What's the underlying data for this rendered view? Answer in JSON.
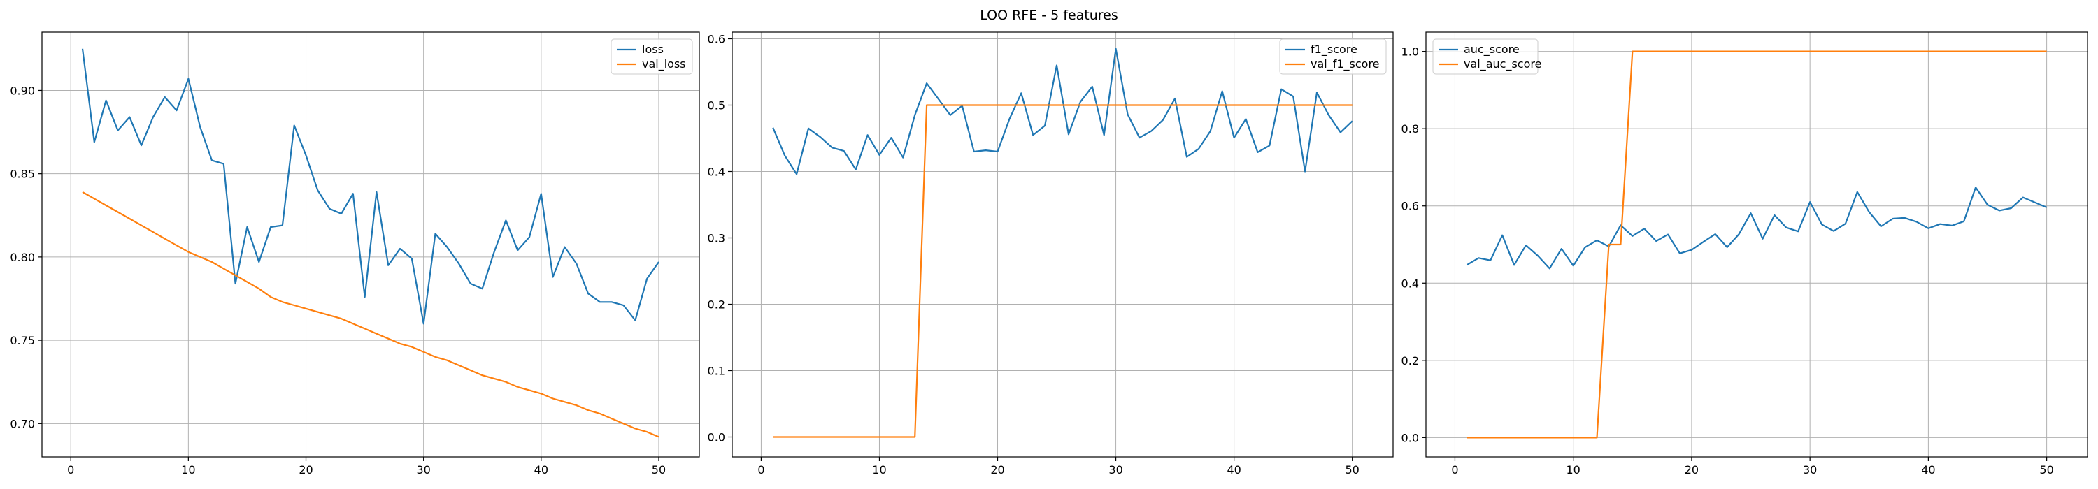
{
  "figure_title": "LOO RFE - 5 features",
  "colors": {
    "series_blue": "#1f77b4",
    "series_orange": "#ff7f0e",
    "grid": "#b0b0b0",
    "axes": "#000000",
    "legend_border": "#cccccc"
  },
  "chart_data": [
    {
      "type": "line",
      "title": "",
      "xlabel": "",
      "ylabel": "",
      "xlim": [
        -2.45,
        53.45
      ],
      "ylim": [
        0.68,
        0.935
      ],
      "xticks": [
        0,
        10,
        20,
        30,
        40,
        50
      ],
      "xtick_labels": [
        "0",
        "10",
        "20",
        "30",
        "40",
        "50"
      ],
      "yticks": [
        0.7,
        0.75,
        0.8,
        0.85,
        0.9
      ],
      "ytick_labels": [
        "0.70",
        "0.75",
        "0.80",
        "0.85",
        "0.90"
      ],
      "grid": true,
      "legend_position": "upper right",
      "x": [
        1,
        2,
        3,
        4,
        5,
        6,
        7,
        8,
        9,
        10,
        11,
        12,
        13,
        14,
        15,
        16,
        17,
        18,
        19,
        20,
        21,
        22,
        23,
        24,
        25,
        26,
        27,
        28,
        29,
        30,
        31,
        32,
        33,
        34,
        35,
        36,
        37,
        38,
        39,
        40,
        41,
        42,
        43,
        44,
        45,
        46,
        47,
        48,
        49,
        50
      ],
      "series": [
        {
          "name": "loss",
          "color": "#1f77b4",
          "values": [
            0.925,
            0.869,
            0.894,
            0.876,
            0.884,
            0.867,
            0.884,
            0.896,
            0.888,
            0.907,
            0.878,
            0.858,
            0.856,
            0.784,
            0.818,
            0.797,
            0.818,
            0.819,
            0.879,
            0.861,
            0.84,
            0.829,
            0.826,
            0.838,
            0.776,
            0.839,
            0.795,
            0.805,
            0.799,
            0.76,
            0.814,
            0.806,
            0.796,
            0.784,
            0.781,
            0.803,
            0.822,
            0.804,
            0.812,
            0.838,
            0.788,
            0.806,
            0.796,
            0.778,
            0.773,
            0.773,
            0.771,
            0.762,
            0.787,
            0.797
          ]
        },
        {
          "name": "val_loss",
          "color": "#ff7f0e",
          "values": [
            0.839,
            0.835,
            0.831,
            0.827,
            0.823,
            0.819,
            0.815,
            0.811,
            0.807,
            0.803,
            0.8,
            0.797,
            0.793,
            0.789,
            0.785,
            0.781,
            0.776,
            0.773,
            0.771,
            0.769,
            0.767,
            0.765,
            0.763,
            0.76,
            0.757,
            0.754,
            0.751,
            0.748,
            0.746,
            0.743,
            0.74,
            0.738,
            0.735,
            0.732,
            0.729,
            0.727,
            0.725,
            0.722,
            0.72,
            0.718,
            0.715,
            0.713,
            0.711,
            0.708,
            0.706,
            0.703,
            0.7,
            0.697,
            0.695,
            0.692
          ]
        }
      ]
    },
    {
      "type": "line",
      "title": "",
      "xlabel": "",
      "ylabel": "",
      "xlim": [
        -2.45,
        53.45
      ],
      "ylim": [
        -0.03,
        0.61
      ],
      "xticks": [
        0,
        10,
        20,
        30,
        40,
        50
      ],
      "xtick_labels": [
        "0",
        "10",
        "20",
        "30",
        "40",
        "50"
      ],
      "yticks": [
        0.0,
        0.1,
        0.2,
        0.3,
        0.4,
        0.5,
        0.6
      ],
      "ytick_labels": [
        "0.0",
        "0.1",
        "0.2",
        "0.3",
        "0.4",
        "0.5",
        "0.6"
      ],
      "grid": true,
      "legend_position": "upper right",
      "x": [
        1,
        2,
        3,
        4,
        5,
        6,
        7,
        8,
        9,
        10,
        11,
        12,
        13,
        14,
        15,
        16,
        17,
        18,
        19,
        20,
        21,
        22,
        23,
        24,
        25,
        26,
        27,
        28,
        29,
        30,
        31,
        32,
        33,
        34,
        35,
        36,
        37,
        38,
        39,
        40,
        41,
        42,
        43,
        44,
        45,
        46,
        47,
        48,
        49,
        50
      ],
      "series": [
        {
          "name": "f1_score",
          "color": "#1f77b4",
          "values": [
            0.466,
            0.424,
            0.396,
            0.465,
            0.452,
            0.436,
            0.431,
            0.403,
            0.455,
            0.425,
            0.451,
            0.421,
            0.485,
            0.533,
            0.509,
            0.485,
            0.499,
            0.43,
            0.432,
            0.43,
            0.479,
            0.518,
            0.455,
            0.469,
            0.56,
            0.456,
            0.505,
            0.528,
            0.455,
            0.585,
            0.486,
            0.451,
            0.461,
            0.478,
            0.51,
            0.422,
            0.434,
            0.461,
            0.521,
            0.451,
            0.479,
            0.429,
            0.439,
            0.524,
            0.513,
            0.4,
            0.519,
            0.485,
            0.459,
            0.476
          ]
        },
        {
          "name": "val_f1_score",
          "color": "#ff7f0e",
          "values": [
            0,
            0,
            0,
            0,
            0,
            0,
            0,
            0,
            0,
            0,
            0,
            0,
            0,
            0.5,
            0.5,
            0.5,
            0.5,
            0.5,
            0.5,
            0.5,
            0.5,
            0.5,
            0.5,
            0.5,
            0.5,
            0.5,
            0.5,
            0.5,
            0.5,
            0.5,
            0.5,
            0.5,
            0.5,
            0.5,
            0.5,
            0.5,
            0.5,
            0.5,
            0.5,
            0.5,
            0.5,
            0.5,
            0.5,
            0.5,
            0.5,
            0.5,
            0.5,
            0.5,
            0.5,
            0.5
          ]
        }
      ]
    },
    {
      "type": "line",
      "title": "",
      "xlabel": "",
      "ylabel": "",
      "xlim": [
        -2.45,
        53.45
      ],
      "ylim": [
        -0.05,
        1.05
      ],
      "xticks": [
        0,
        10,
        20,
        30,
        40,
        50
      ],
      "xtick_labels": [
        "0",
        "10",
        "20",
        "30",
        "40",
        "50"
      ],
      "yticks": [
        0.0,
        0.2,
        0.4,
        0.6,
        0.8,
        1.0
      ],
      "ytick_labels": [
        "0.0",
        "0.2",
        "0.4",
        "0.6",
        "0.8",
        "1.0"
      ],
      "grid": true,
      "legend_position": "upper left",
      "x": [
        1,
        2,
        3,
        4,
        5,
        6,
        7,
        8,
        9,
        10,
        11,
        12,
        13,
        14,
        15,
        16,
        17,
        18,
        19,
        20,
        21,
        22,
        23,
        24,
        25,
        26,
        27,
        28,
        29,
        30,
        31,
        32,
        33,
        34,
        35,
        36,
        37,
        38,
        39,
        40,
        41,
        42,
        43,
        44,
        45,
        46,
        47,
        48,
        49,
        50
      ],
      "series": [
        {
          "name": "auc_score",
          "color": "#1f77b4",
          "values": [
            0.447,
            0.465,
            0.459,
            0.524,
            0.447,
            0.498,
            0.471,
            0.438,
            0.489,
            0.445,
            0.493,
            0.511,
            0.495,
            0.55,
            0.522,
            0.541,
            0.509,
            0.526,
            0.477,
            0.486,
            0.507,
            0.527,
            0.493,
            0.527,
            0.581,
            0.515,
            0.576,
            0.544,
            0.534,
            0.61,
            0.552,
            0.535,
            0.554,
            0.636,
            0.584,
            0.547,
            0.567,
            0.569,
            0.559,
            0.542,
            0.553,
            0.549,
            0.56,
            0.648,
            0.603,
            0.588,
            0.594,
            0.622,
            0.609,
            0.596
          ]
        },
        {
          "name": "val_auc_score",
          "color": "#ff7f0e",
          "values": [
            0,
            0,
            0,
            0,
            0,
            0,
            0,
            0,
            0,
            0,
            0,
            0,
            0.5,
            0.5,
            1,
            1,
            1,
            1,
            1,
            1,
            1,
            1,
            1,
            1,
            1,
            1,
            1,
            1,
            1,
            1,
            1,
            1,
            1,
            1,
            1,
            1,
            1,
            1,
            1,
            1,
            1,
            1,
            1,
            1,
            1,
            1,
            1,
            1,
            1,
            1
          ]
        }
      ]
    }
  ]
}
